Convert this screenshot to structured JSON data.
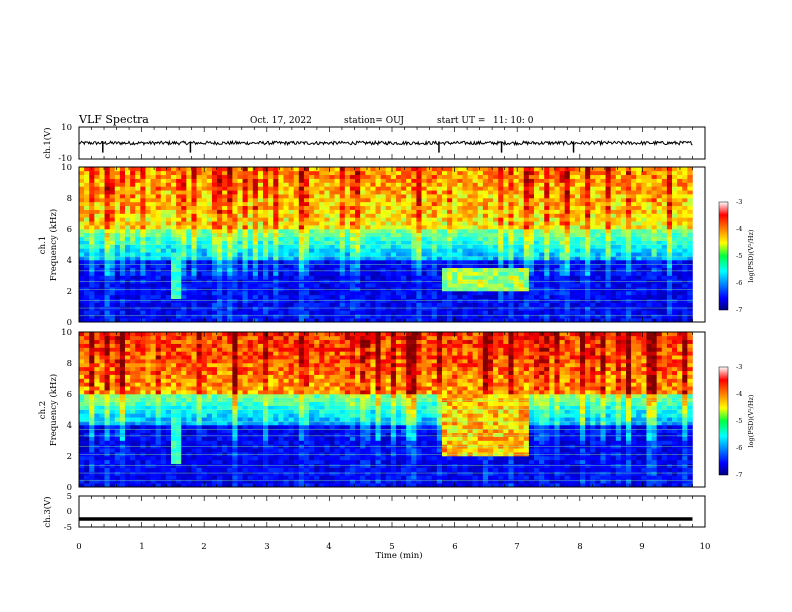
{
  "header": {
    "title": "VLF Spectra",
    "date": "Oct. 17, 2022",
    "station": "station= OUJ",
    "start_label": "start  UT  =",
    "start_time": "11: 10: 0"
  },
  "chart_data": [
    {
      "type": "line",
      "panel": "ch1-waveform",
      "ylabel": "ch.1(V)",
      "yticks": [
        "10",
        "-10"
      ],
      "ylim": [
        -10,
        10
      ],
      "xlim": [
        0,
        10
      ],
      "baseline": 0,
      "trace_end_min": 9.8,
      "spikes_min": [
        0.38,
        1.78,
        5.75,
        6.75,
        7.9
      ]
    },
    {
      "type": "heatmap",
      "panel": "ch1-spectrogram",
      "ylabel_channel": "ch.1",
      "ylabel": "Frequency  (kHz)",
      "yticks": [
        "0",
        "2",
        "4",
        "6",
        "8",
        "10"
      ],
      "ylim": [
        0,
        10
      ],
      "xlim": [
        0,
        10
      ],
      "data_end_min": 9.8,
      "colorbar": {
        "label": "log(PSD)(V²/Hz)",
        "ticks": [
          "-3",
          "-4",
          "-5",
          "-6",
          "-7"
        ],
        "range": [
          -7,
          -3
        ]
      },
      "features": [
        {
          "name": "broadband-noise",
          "freq_range_khz": [
            6,
            10
          ],
          "level": -4.5
        },
        {
          "name": "emission-band",
          "time_min": [
            5.8,
            7.2
          ],
          "freq_khz": [
            2,
            3.5
          ],
          "level": -5
        },
        {
          "name": "whistler-trace",
          "time_min": 1.55,
          "freq_khz": 2,
          "level": -5.5
        }
      ]
    },
    {
      "type": "heatmap",
      "panel": "ch2-spectrogram",
      "ylabel_channel": "ch.2",
      "ylabel": "Frequency  (kHz)",
      "yticks": [
        "0",
        "2",
        "4",
        "6",
        "8",
        "10"
      ],
      "ylim": [
        0,
        10
      ],
      "xlim": [
        0,
        10
      ],
      "data_end_min": 9.8,
      "colorbar": {
        "label": "log(PSD)(V²/Hz)",
        "ticks": [
          "-3",
          "-4",
          "-5",
          "-6",
          "-7"
        ],
        "range": [
          -7,
          -3
        ]
      },
      "features": [
        {
          "name": "broadband-noise",
          "freq_range_khz": [
            6,
            10
          ],
          "level": -4
        },
        {
          "name": "emission-band",
          "time_min": [
            5.8,
            7.2
          ],
          "freq_khz": [
            2,
            6
          ],
          "level": -4.5
        },
        {
          "name": "whistler-trace",
          "time_min": 1.55,
          "freq_khz": 2,
          "level": -5.5
        }
      ]
    },
    {
      "type": "line",
      "panel": "ch3-waveform",
      "ylabel": "ch.3(V)",
      "yticks": [
        "5",
        "0",
        "-5"
      ],
      "ylim": [
        -5,
        5
      ],
      "xlim": [
        0,
        10
      ],
      "baseline": -2.4,
      "trace_end_min": 9.8,
      "xlabel": "Time  (min)",
      "xticks": [
        "0",
        "1",
        "2",
        "3",
        "4",
        "5",
        "6",
        "7",
        "8",
        "9",
        "10"
      ]
    }
  ]
}
